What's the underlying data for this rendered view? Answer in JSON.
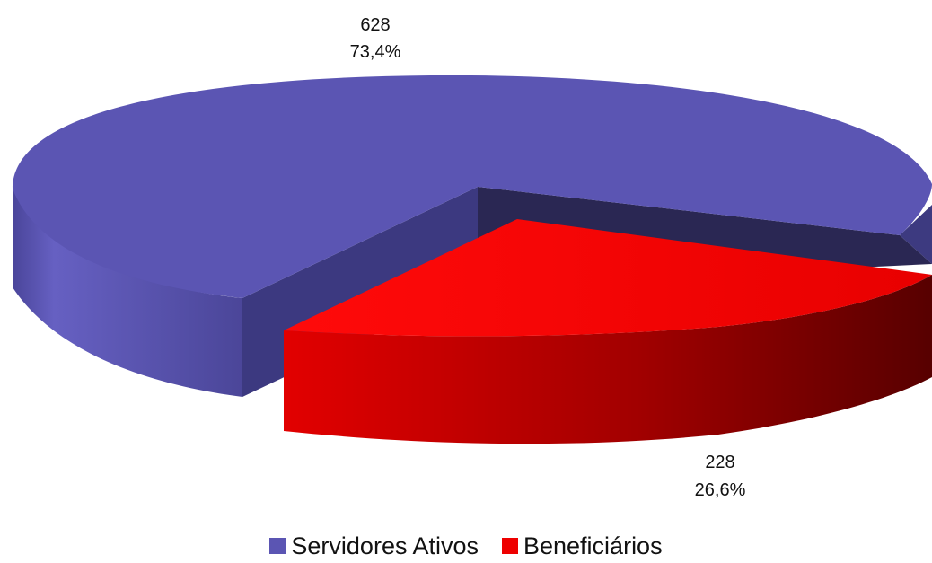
{
  "chart_data": {
    "type": "pie",
    "variant": "3d-exploded",
    "series": [
      {
        "name": "Servidores Ativos",
        "value": 628,
        "percent_label": "73,4%",
        "value_label": "628",
        "color": "#5b55b3",
        "side_color": "#3d3a80",
        "inner_color": "#27254f"
      },
      {
        "name": "Beneficiários",
        "value": 228,
        "percent_label": "26,6%",
        "value_label": "228",
        "color": "#ee0000",
        "side_color": "#a00000",
        "inner_color": "#5a0000"
      }
    ],
    "legend": {
      "placement": "bottom"
    }
  }
}
